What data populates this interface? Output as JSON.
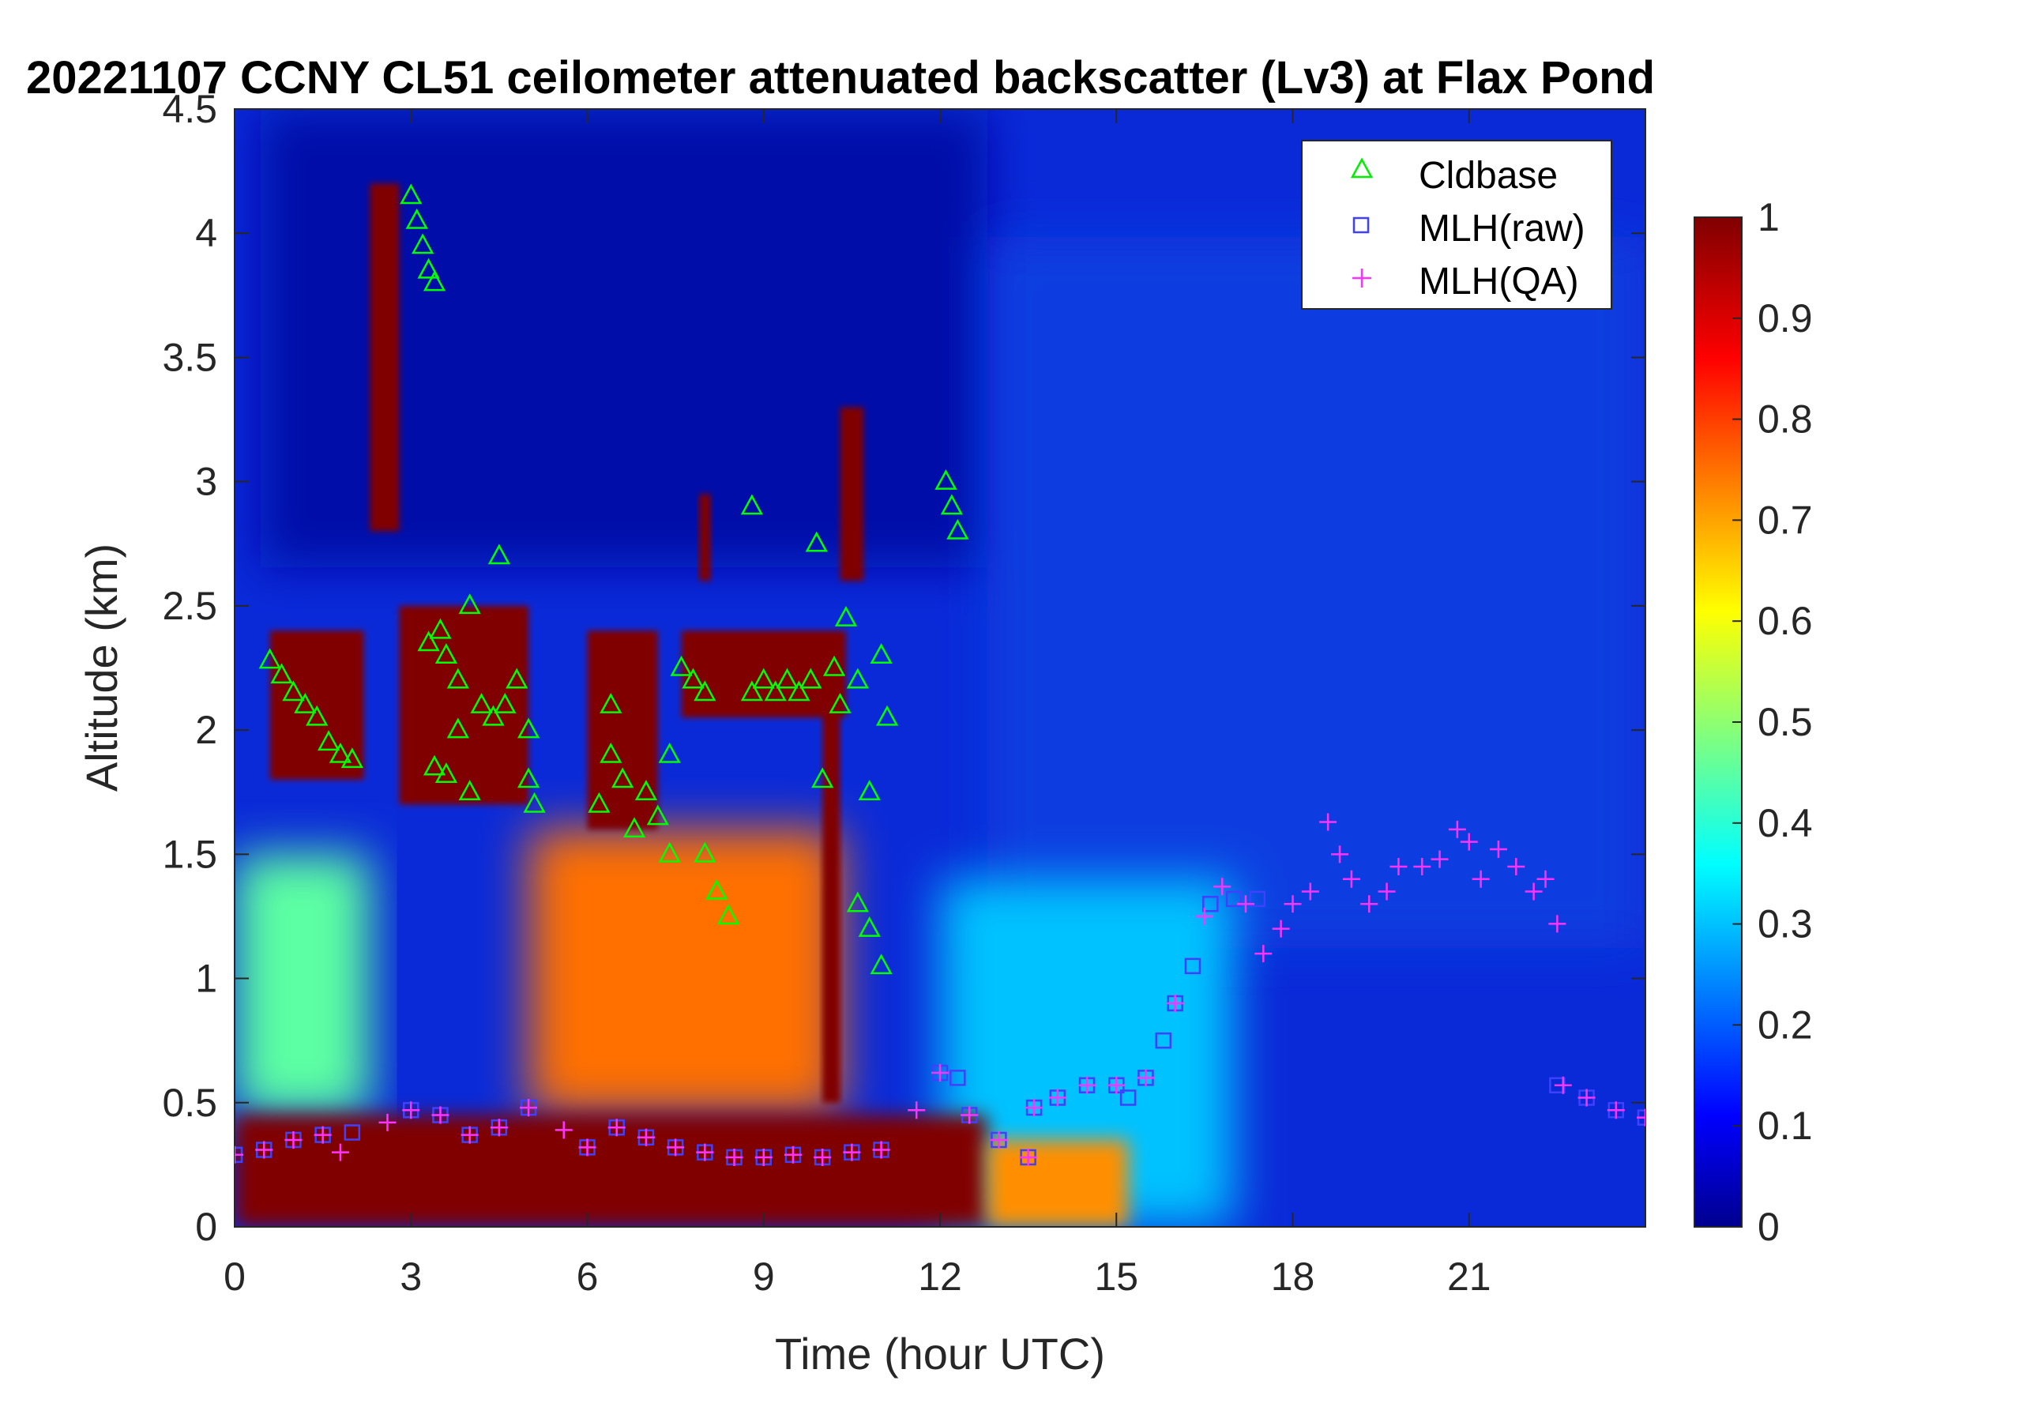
{
  "chart_data": {
    "type": "heatmap",
    "title": "20221107 CCNY CL51 ceilometer attenuated backscatter (Lv3) at Flax Pond",
    "xlabel": "Time (hour UTC)",
    "ylabel": "Altitude (km)",
    "xlim": [
      0,
      24
    ],
    "ylim": [
      0,
      4.5
    ],
    "x_ticks": [
      "0",
      "3",
      "6",
      "9",
      "12",
      "15",
      "18",
      "21"
    ],
    "x_tick_values": [
      0,
      3,
      6,
      9,
      12,
      15,
      18,
      21
    ],
    "y_ticks": [
      "0",
      "0.5",
      "1",
      "1.5",
      "2",
      "2.5",
      "3",
      "3.5",
      "4",
      "4.5"
    ],
    "y_tick_values": [
      0,
      0.5,
      1,
      1.5,
      2,
      2.5,
      3,
      3.5,
      4,
      4.5
    ],
    "colorbar": {
      "colormap": "jet",
      "range": [
        0,
        1
      ],
      "ticks": [
        "0",
        "0.1",
        "0.2",
        "0.3",
        "0.4",
        "0.5",
        "0.6",
        "0.7",
        "0.8",
        "0.9",
        "1"
      ],
      "tick_values": [
        0,
        0.1,
        0.2,
        0.3,
        0.4,
        0.5,
        0.6,
        0.7,
        0.8,
        0.9,
        1
      ]
    },
    "legend": {
      "placement": "top-right",
      "entries": [
        "Cldbase",
        "MLH(raw)",
        "MLH(QA)"
      ]
    },
    "series": [
      {
        "name": "Cldbase",
        "marker": "triangle",
        "color": "#00ff00",
        "points": [
          [
            0.6,
            2.28
          ],
          [
            0.8,
            2.22
          ],
          [
            1.0,
            2.15
          ],
          [
            1.2,
            2.1
          ],
          [
            1.4,
            2.05
          ],
          [
            1.6,
            1.95
          ],
          [
            1.8,
            1.9
          ],
          [
            2.0,
            1.88
          ],
          [
            3.0,
            4.15
          ],
          [
            3.1,
            4.05
          ],
          [
            3.2,
            3.95
          ],
          [
            3.3,
            3.85
          ],
          [
            3.4,
            3.8
          ],
          [
            3.3,
            2.35
          ],
          [
            3.5,
            2.4
          ],
          [
            3.6,
            2.3
          ],
          [
            3.8,
            2.2
          ],
          [
            3.4,
            1.85
          ],
          [
            3.6,
            1.82
          ],
          [
            3.8,
            2.0
          ],
          [
            4.0,
            2.5
          ],
          [
            4.0,
            1.75
          ],
          [
            4.2,
            2.1
          ],
          [
            4.4,
            2.05
          ],
          [
            4.5,
            2.7
          ],
          [
            4.6,
            2.1
          ],
          [
            4.8,
            2.2
          ],
          [
            5.0,
            2.0
          ],
          [
            5.0,
            1.8
          ],
          [
            5.1,
            1.7
          ],
          [
            6.2,
            1.7
          ],
          [
            6.4,
            2.1
          ],
          [
            6.4,
            1.9
          ],
          [
            6.6,
            1.8
          ],
          [
            6.8,
            1.6
          ],
          [
            7.0,
            1.75
          ],
          [
            7.2,
            1.65
          ],
          [
            7.4,
            1.5
          ],
          [
            7.4,
            1.9
          ],
          [
            7.6,
            2.25
          ],
          [
            7.8,
            2.2
          ],
          [
            8.0,
            2.15
          ],
          [
            8.0,
            1.5
          ],
          [
            8.2,
            1.35
          ],
          [
            8.4,
            1.25
          ],
          [
            8.8,
            2.9
          ],
          [
            8.8,
            2.15
          ],
          [
            9.0,
            2.2
          ],
          [
            9.2,
            2.15
          ],
          [
            9.4,
            2.2
          ],
          [
            9.6,
            2.15
          ],
          [
            9.8,
            2.2
          ],
          [
            9.9,
            2.75
          ],
          [
            10.0,
            1.8
          ],
          [
            10.2,
            2.25
          ],
          [
            10.3,
            2.1
          ],
          [
            10.4,
            2.45
          ],
          [
            10.6,
            2.2
          ],
          [
            10.6,
            1.3
          ],
          [
            10.8,
            1.2
          ],
          [
            10.8,
            1.75
          ],
          [
            11.0,
            1.05
          ],
          [
            11.0,
            2.3
          ],
          [
            11.1,
            2.05
          ],
          [
            12.1,
            3.0
          ],
          [
            12.2,
            2.9
          ],
          [
            12.3,
            2.8
          ]
        ]
      },
      {
        "name": "MLH(raw)",
        "marker": "square",
        "color": "#4040ff",
        "points": [
          [
            0.0,
            0.29
          ],
          [
            0.5,
            0.31
          ],
          [
            1.0,
            0.35
          ],
          [
            1.5,
            0.37
          ],
          [
            2.0,
            0.38
          ],
          [
            3.0,
            0.47
          ],
          [
            3.5,
            0.45
          ],
          [
            4.0,
            0.37
          ],
          [
            4.5,
            0.4
          ],
          [
            5.0,
            0.48
          ],
          [
            6.0,
            0.32
          ],
          [
            6.5,
            0.4
          ],
          [
            7.0,
            0.36
          ],
          [
            7.5,
            0.32
          ],
          [
            8.0,
            0.3
          ],
          [
            8.5,
            0.28
          ],
          [
            9.0,
            0.28
          ],
          [
            9.5,
            0.29
          ],
          [
            10.0,
            0.28
          ],
          [
            10.5,
            0.3
          ],
          [
            11.0,
            0.31
          ],
          [
            12.0,
            0.62
          ],
          [
            12.3,
            0.6
          ],
          [
            12.5,
            0.45
          ],
          [
            13.0,
            0.35
          ],
          [
            13.5,
            0.28
          ],
          [
            13.6,
            0.48
          ],
          [
            14.0,
            0.52
          ],
          [
            14.5,
            0.57
          ],
          [
            15.0,
            0.57
          ],
          [
            15.2,
            0.52
          ],
          [
            15.5,
            0.6
          ],
          [
            15.8,
            0.75
          ],
          [
            16.0,
            0.9
          ],
          [
            16.3,
            1.05
          ],
          [
            16.6,
            1.3
          ],
          [
            17.0,
            1.32
          ],
          [
            17.4,
            1.32
          ],
          [
            22.5,
            0.57
          ],
          [
            23.0,
            0.52
          ],
          [
            23.5,
            0.47
          ],
          [
            24.0,
            0.44
          ]
        ]
      },
      {
        "name": "MLH(QA)",
        "marker": "plus",
        "color": "#ff33ff",
        "points": [
          [
            0.0,
            0.29
          ],
          [
            0.5,
            0.31
          ],
          [
            1.0,
            0.35
          ],
          [
            1.5,
            0.37
          ],
          [
            1.8,
            0.3
          ],
          [
            2.6,
            0.42
          ],
          [
            3.0,
            0.47
          ],
          [
            3.5,
            0.45
          ],
          [
            4.0,
            0.37
          ],
          [
            4.5,
            0.4
          ],
          [
            5.0,
            0.48
          ],
          [
            5.6,
            0.39
          ],
          [
            6.0,
            0.32
          ],
          [
            6.5,
            0.4
          ],
          [
            7.0,
            0.36
          ],
          [
            7.5,
            0.32
          ],
          [
            8.0,
            0.3
          ],
          [
            8.5,
            0.28
          ],
          [
            9.0,
            0.28
          ],
          [
            9.5,
            0.29
          ],
          [
            10.0,
            0.28
          ],
          [
            10.5,
            0.3
          ],
          [
            11.0,
            0.31
          ],
          [
            11.6,
            0.47
          ],
          [
            12.0,
            0.62
          ],
          [
            12.5,
            0.45
          ],
          [
            13.0,
            0.35
          ],
          [
            13.5,
            0.28
          ],
          [
            13.6,
            0.48
          ],
          [
            14.0,
            0.52
          ],
          [
            14.5,
            0.57
          ],
          [
            15.0,
            0.57
          ],
          [
            15.5,
            0.6
          ],
          [
            16.0,
            0.9
          ],
          [
            16.5,
            1.25
          ],
          [
            16.8,
            1.37
          ],
          [
            17.2,
            1.3
          ],
          [
            17.5,
            1.1
          ],
          [
            17.8,
            1.2
          ],
          [
            18.0,
            1.3
          ],
          [
            18.3,
            1.35
          ],
          [
            18.6,
            1.63
          ],
          [
            18.8,
            1.5
          ],
          [
            19.0,
            1.4
          ],
          [
            19.3,
            1.3
          ],
          [
            19.6,
            1.35
          ],
          [
            19.8,
            1.45
          ],
          [
            20.2,
            1.45
          ],
          [
            20.5,
            1.48
          ],
          [
            20.8,
            1.6
          ],
          [
            21.0,
            1.55
          ],
          [
            21.2,
            1.4
          ],
          [
            21.5,
            1.52
          ],
          [
            21.8,
            1.45
          ],
          [
            22.1,
            1.35
          ],
          [
            22.3,
            1.4
          ],
          [
            22.5,
            1.22
          ],
          [
            22.6,
            0.57
          ],
          [
            23.0,
            0.52
          ],
          [
            23.5,
            0.47
          ],
          [
            24.0,
            0.44
          ]
        ]
      }
    ],
    "backscatter_features": [
      {
        "kind": "surface_layer",
        "x0": 0,
        "x1": 12.8,
        "y_top_km": 0.45,
        "value": 1.0
      },
      {
        "kind": "surface_layer",
        "x0": 12.8,
        "x1": 15.2,
        "y_top_km": 0.35,
        "value": 0.72
      },
      {
        "kind": "cloud",
        "x0": 2.3,
        "x1": 2.8,
        "y0": 2.8,
        "y1": 4.2,
        "value": 1.0
      },
      {
        "kind": "cloud",
        "x0": 0.6,
        "x1": 2.2,
        "y0": 1.8,
        "y1": 2.4,
        "value": 1.0
      },
      {
        "kind": "cloud",
        "x0": 2.8,
        "x1": 5.0,
        "y0": 1.7,
        "y1": 2.5,
        "value": 1.0
      },
      {
        "kind": "cloud",
        "x0": 6.0,
        "x1": 7.2,
        "y0": 1.6,
        "y1": 2.4,
        "value": 1.0
      },
      {
        "kind": "cloud",
        "x0": 7.6,
        "x1": 10.4,
        "y0": 2.05,
        "y1": 2.4,
        "value": 1.0
      },
      {
        "kind": "cloud",
        "x0": 7.9,
        "x1": 8.1,
        "y0": 2.6,
        "y1": 2.95,
        "value": 1.0
      },
      {
        "kind": "cloud",
        "x0": 10.3,
        "x1": 10.7,
        "y0": 2.6,
        "y1": 3.3,
        "value": 1.0
      },
      {
        "kind": "cloud",
        "x0": 10.0,
        "x1": 10.3,
        "y0": 0.5,
        "y1": 2.2,
        "value": 1.0
      },
      {
        "kind": "aerosol",
        "x0": 0,
        "x1": 2.3,
        "y0": 0.45,
        "y1": 1.5,
        "value": 0.45
      },
      {
        "kind": "aerosol",
        "x0": 5.0,
        "x1": 10.3,
        "y0": 0.45,
        "y1": 1.6,
        "value": 0.75
      },
      {
        "kind": "aerosol",
        "x0": 12.0,
        "x1": 17.0,
        "y0": 0.0,
        "y1": 1.4,
        "value": 0.3
      }
    ]
  }
}
